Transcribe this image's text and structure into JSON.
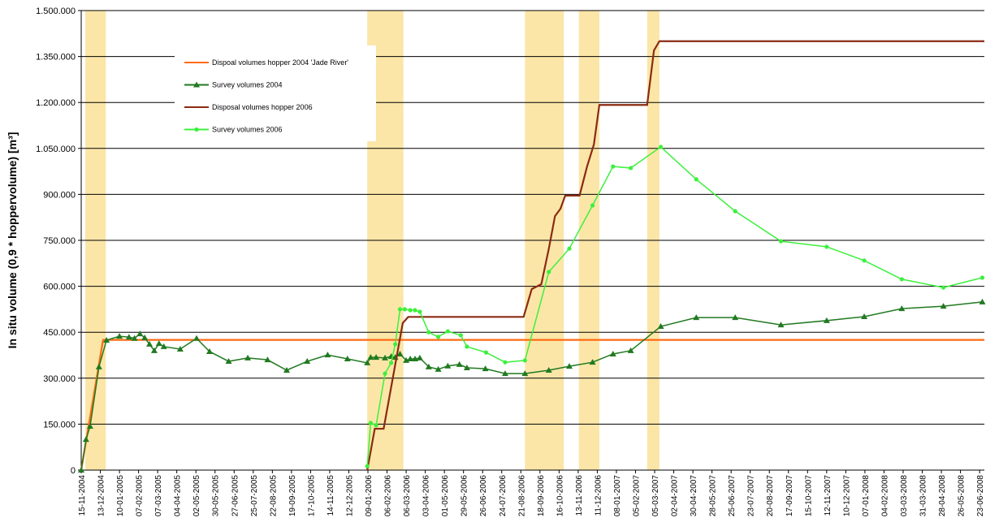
{
  "chart_data": {
    "type": "line",
    "y_label": "In situ volume (0,9 * hoppervolume) [m³]",
    "legend": "upper left",
    "grid": true,
    "xlim": [
      "2004-11-15",
      "2008-06-30"
    ],
    "ylim": [
      0,
      1500000
    ],
    "yticks": [
      0,
      {
        "value": 150000,
        "label": "150.000"
      },
      {
        "value": 300000,
        "label": "300.000"
      },
      {
        "value": 450000,
        "label": "450.000"
      },
      {
        "value": 600000,
        "label": "600.000"
      },
      {
        "value": 750000,
        "label": "750.000"
      },
      {
        "value": 900000,
        "label": "900.000"
      },
      {
        "value": 1050000,
        "label": "1.050.000"
      },
      {
        "value": 1200000,
        "label": "1.200.000"
      },
      {
        "value": 1350000,
        "label": "1.350.000"
      },
      {
        "value": 1500000,
        "label": "1.500.000"
      }
    ],
    "xticks": [
      {
        "value": "2004-11-15",
        "label": "15-11-2004"
      },
      {
        "value": "2004-12-13",
        "label": "13-12-2004"
      },
      {
        "value": "2005-01-10",
        "label": "10-01-2005"
      },
      {
        "value": "2005-02-07",
        "label": "07-02-2005"
      },
      {
        "value": "2005-03-07",
        "label": "07-03-2005"
      },
      {
        "value": "2005-04-04",
        "label": "04-04-2005"
      },
      {
        "value": "2005-05-02",
        "label": "02-05-2005"
      },
      {
        "value": "2005-05-30",
        "label": "30-05-2005"
      },
      {
        "value": "2005-06-27",
        "label": "27-06-2005"
      },
      {
        "value": "2005-07-25",
        "label": "25-07-2005"
      },
      {
        "value": "2005-08-22",
        "label": "22-08-2005"
      },
      {
        "value": "2005-09-19",
        "label": "19-09-2005"
      },
      {
        "value": "2005-10-17",
        "label": "17-10-2005"
      },
      {
        "value": "2005-11-14",
        "label": "14-11-2005"
      },
      {
        "value": "2005-12-12",
        "label": "12-12-2005"
      },
      {
        "value": "2006-01-09",
        "label": "09-01-2006"
      },
      {
        "value": "2006-02-06",
        "label": "06-02-2006"
      },
      {
        "value": "2006-03-06",
        "label": "06-03-2006"
      },
      {
        "value": "2006-04-03",
        "label": "03-04-2006"
      },
      {
        "value": "2006-05-01",
        "label": "01-05-2006"
      },
      {
        "value": "2006-05-29",
        "label": "29-05-2006"
      },
      {
        "value": "2006-06-26",
        "label": "26-06-2006"
      },
      {
        "value": "2006-07-24",
        "label": "24-07-2006"
      },
      {
        "value": "2006-08-21",
        "label": "21-08-2006"
      },
      {
        "value": "2006-09-18",
        "label": "18-09-2006"
      },
      {
        "value": "2006-10-16",
        "label": "16-10-2006"
      },
      {
        "value": "2006-11-13",
        "label": "13-11-2006"
      },
      {
        "value": "2006-12-11",
        "label": "11-12-2006"
      },
      {
        "value": "2007-01-08",
        "label": "08-01-2007"
      },
      {
        "value": "2007-02-05",
        "label": "05-02-2007"
      },
      {
        "value": "2007-03-05",
        "label": "05-03-2007"
      },
      {
        "value": "2007-04-02",
        "label": "02-04-2007"
      },
      {
        "value": "2007-04-30",
        "label": "30-04-2007"
      },
      {
        "value": "2007-05-28",
        "label": "28-05-2007"
      },
      {
        "value": "2007-06-25",
        "label": "25-06-2007"
      },
      {
        "value": "2007-07-23",
        "label": "23-07-2007"
      },
      {
        "value": "2007-08-20",
        "label": "20-08-2007"
      },
      {
        "value": "2007-09-17",
        "label": "17-09-2007"
      },
      {
        "value": "2007-10-15",
        "label": "15-10-2007"
      },
      {
        "value": "2007-11-12",
        "label": "12-11-2007"
      },
      {
        "value": "2007-12-10",
        "label": "10-12-2007"
      },
      {
        "value": "2008-01-07",
        "label": "07-01-2008"
      },
      {
        "value": "2008-02-04",
        "label": "04-02-2008"
      },
      {
        "value": "2008-03-03",
        "label": "03-03-2008"
      },
      {
        "value": "2008-03-31",
        "label": "31-03-2008"
      },
      {
        "value": "2008-04-28",
        "label": "28-04-2008"
      },
      {
        "value": "2008-05-26",
        "label": "26-05-2008"
      },
      {
        "value": "2008-06-23",
        "label": "23-06-2008"
      }
    ],
    "highlight_color": "#fbe6a8",
    "highlight_periods": [
      [
        "2004-11-21",
        "2004-12-21"
      ],
      [
        "2006-01-08",
        "2006-03-02"
      ],
      [
        "2006-08-27",
        "2006-10-23"
      ],
      [
        "2006-11-14",
        "2006-12-14"
      ],
      [
        "2007-02-22",
        "2007-03-12"
      ]
    ],
    "series": [
      {
        "name": "Dispoal volumes hopper 2004 'Jade River'",
        "color": "#ff6a13",
        "marker": null,
        "x": [
          "2004-11-15",
          "2004-12-17",
          "2008-06-30"
        ],
        "values": [
          0,
          425000,
          425000
        ]
      },
      {
        "name": "Survey volumes 2004",
        "color": "#217a21",
        "marker": "triangle",
        "x": [
          "2004-11-15",
          "2004-11-22",
          "2004-11-28",
          "2004-12-11",
          "2004-12-22",
          "2005-01-10",
          "2005-01-24",
          "2005-02-01",
          "2005-02-09",
          "2005-02-16",
          "2005-02-23",
          "2005-03-02",
          "2005-03-09",
          "2005-03-16",
          "2005-04-09",
          "2005-05-03",
          "2005-05-22",
          "2005-06-19",
          "2005-07-17",
          "2005-08-15",
          "2005-09-12",
          "2005-10-12",
          "2005-11-11",
          "2005-12-10",
          "2006-01-08",
          "2006-01-13",
          "2006-01-21",
          "2006-02-03",
          "2006-02-12",
          "2006-02-18",
          "2006-02-25",
          "2006-03-06",
          "2006-03-12",
          "2006-03-19",
          "2006-03-26",
          "2006-04-08",
          "2006-04-22",
          "2006-05-06",
          "2006-05-23",
          "2006-06-03",
          "2006-06-30",
          "2006-07-29",
          "2006-08-27",
          "2006-10-01",
          "2006-10-31",
          "2006-12-04",
          "2007-01-03",
          "2007-01-29",
          "2007-03-14",
          "2007-05-05",
          "2007-07-01",
          "2007-09-06",
          "2007-11-12",
          "2008-01-06",
          "2008-03-01",
          "2008-05-01",
          "2008-06-27"
        ],
        "values": [
          0,
          100000,
          143000,
          337000,
          424000,
          437000,
          434000,
          430000,
          445000,
          432000,
          411000,
          390000,
          413000,
          403000,
          395000,
          430000,
          387000,
          355000,
          366000,
          360000,
          326000,
          355000,
          376000,
          363000,
          350000,
          368000,
          368000,
          366000,
          371000,
          368000,
          379000,
          358000,
          363000,
          363000,
          366000,
          337000,
          329000,
          340000,
          345000,
          334000,
          331000,
          315000,
          315000,
          326000,
          339000,
          352000,
          379000,
          390000,
          469000,
          498000,
          498000,
          474000,
          488000,
          501000,
          527000,
          535000,
          549000
        ]
      },
      {
        "name": "Disposal volumes hopper 2006",
        "color": "#8b2a12",
        "marker": null,
        "x": [
          "2006-01-08",
          "2006-01-19",
          "2006-02-01",
          "2006-03-01",
          "2006-03-09",
          "2006-08-25",
          "2006-09-06",
          "2006-09-20",
          "2006-10-01",
          "2006-10-10",
          "2006-10-18",
          "2006-10-25",
          "2006-11-15",
          "2006-11-26",
          "2006-12-06",
          "2006-12-14",
          "2007-02-22",
          "2007-03-04",
          "2007-03-12",
          "2008-06-30"
        ],
        "values": [
          0,
          135000,
          135000,
          480000,
          500000,
          500000,
          591000,
          607000,
          723000,
          829000,
          853000,
          896000,
          896000,
          991000,
          1063000,
          1192000,
          1192000,
          1370000,
          1400000,
          1400000
        ]
      },
      {
        "name": "Survey volumes 2006",
        "color": "#3cf03c",
        "marker": "circle",
        "x": [
          "2006-01-08",
          "2006-01-13",
          "2006-01-21",
          "2006-02-03",
          "2006-02-12",
          "2006-02-18",
          "2006-02-25",
          "2006-03-04",
          "2006-03-12",
          "2006-03-19",
          "2006-03-26",
          "2006-04-08",
          "2006-04-22",
          "2006-05-06",
          "2006-05-25",
          "2006-06-03",
          "2006-07-01",
          "2006-07-29",
          "2006-08-27",
          "2006-10-01",
          "2006-10-31",
          "2006-12-04",
          "2007-01-03",
          "2007-01-29",
          "2007-03-14",
          "2007-05-05",
          "2007-07-01",
          "2007-09-06",
          "2007-11-12",
          "2008-01-06",
          "2008-03-01",
          "2008-05-01",
          "2008-06-27"
        ],
        "values": [
          13000,
          154000,
          146000,
          315000,
          350000,
          411000,
          525000,
          525000,
          522000,
          522000,
          517000,
          450000,
          435000,
          453000,
          440000,
          403000,
          384000,
          352000,
          358000,
          647000,
          723000,
          864000,
          991000,
          986000,
          1055000,
          949000,
          845000,
          747000,
          729000,
          684000,
          623000,
          596000,
          628000
        ]
      }
    ]
  }
}
